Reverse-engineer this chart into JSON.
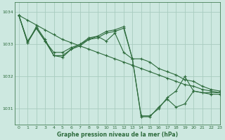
{
  "bg_color": "#cde8e0",
  "grid_color": "#a8ccbf",
  "line_color": "#2d6b3c",
  "xlabel": "Graphe pression niveau de la mer (hPa)",
  "xlim": [
    -0.5,
    23
  ],
  "ylim": [
    1030.5,
    1034.3
  ],
  "yticks": [
    1031,
    1032,
    1033,
    1034
  ],
  "xticks": [
    0,
    1,
    2,
    3,
    4,
    5,
    6,
    7,
    8,
    9,
    10,
    11,
    12,
    13,
    14,
    15,
    16,
    17,
    18,
    19,
    20,
    21,
    22,
    23
  ],
  "series": [
    {
      "y": [
        1033.9,
        1033.1,
        1033.5,
        1033.1,
        1032.75,
        1032.75,
        1032.9,
        1033.0,
        1033.15,
        1033.25,
        1033.1,
        1033.35,
        1032.75,
        1032.55,
        1032.55,
        1032.45,
        1032.25,
        1032.15,
        1032.05,
        1031.9,
        1031.85,
        1031.7,
        1031.6,
        1031.55
      ]
    },
    {
      "y": [
        1033.9,
        1033.05,
        1033.55,
        1033.15,
        1032.65,
        1032.65,
        1032.85,
        1033.0,
        1033.2,
        1033.25,
        1033.4,
        1033.45,
        1033.55,
        1032.55,
        1030.78,
        1030.78,
        1031.0,
        1031.35,
        1031.55,
        1032.0,
        1031.55,
        1031.5,
        1031.5,
        1031.5
      ]
    },
    {
      "y": [
        1033.9,
        1033.05,
        1033.5,
        1033.1,
        1032.65,
        1032.6,
        1032.85,
        1032.95,
        1033.15,
        1033.2,
        1033.35,
        1033.4,
        1033.5,
        1032.55,
        1030.75,
        1030.75,
        1031.05,
        1031.3,
        1031.05,
        1031.15,
        1031.55,
        1031.5,
        1031.45,
        1031.45
      ]
    },
    {
      "y": [
        1033.9,
        1033.75,
        1033.6,
        1033.45,
        1033.3,
        1033.15,
        1033.05,
        1032.95,
        1032.85,
        1032.75,
        1032.65,
        1032.55,
        1032.45,
        1032.35,
        1032.25,
        1032.15,
        1032.05,
        1031.95,
        1031.85,
        1031.75,
        1031.7,
        1031.6,
        1031.55,
        1031.5
      ]
    }
  ]
}
